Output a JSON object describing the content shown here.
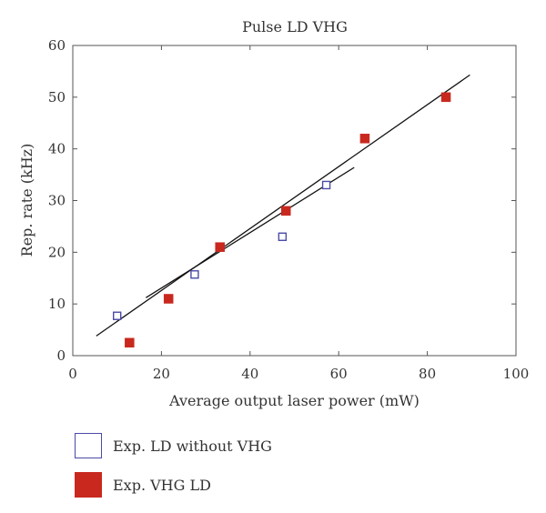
{
  "chart_data": {
    "type": "scatter",
    "title": "Pulse LD VHG",
    "xlabel": "Average output laser power (mW)",
    "ylabel": "Rep. rate (kHz)",
    "xlim": [
      0,
      100
    ],
    "ylim": [
      0,
      60
    ],
    "xticks": [
      "0",
      "20",
      "40",
      "60",
      "80",
      "100"
    ],
    "yticks": [
      "0",
      "10",
      "20",
      "30",
      "40",
      "50",
      "60"
    ],
    "grid": false,
    "legend_position": "bottom",
    "series": [
      {
        "name": "Exp. LD without VHG",
        "marker": "open-square",
        "color": "#4a4aa8",
        "points": [
          {
            "x": 10,
            "y": 7.7
          },
          {
            "x": 27.5,
            "y": 15.7
          },
          {
            "x": 47.3,
            "y": 23
          },
          {
            "x": 57.2,
            "y": 33
          }
        ],
        "fit_line": {
          "x": [
            16.5,
            63.5
          ],
          "y": [
            11.2,
            36.4
          ]
        }
      },
      {
        "name": "Exp. VHG LD",
        "marker": "filled-square",
        "color": "#c8281e",
        "points": [
          {
            "x": 12.8,
            "y": 2.5
          },
          {
            "x": 21.6,
            "y": 11
          },
          {
            "x": 33.2,
            "y": 21
          },
          {
            "x": 48.1,
            "y": 28
          },
          {
            "x": 65.9,
            "y": 42
          },
          {
            "x": 84.2,
            "y": 50
          }
        ],
        "fit_line": {
          "x": [
            5.3,
            89.6
          ],
          "y": [
            3.8,
            54.3
          ]
        }
      }
    ]
  }
}
